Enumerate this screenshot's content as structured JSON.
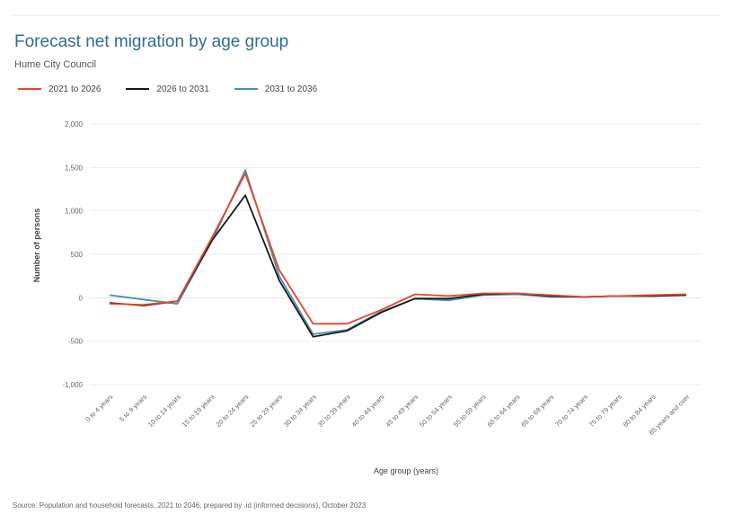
{
  "header": {
    "title": "Forecast net migration by age group",
    "subtitle": "Hume City Council"
  },
  "colors": {
    "series_2021_2026": "#e8462b",
    "series_2026_2031": "#1a1a1a",
    "series_2031_2036": "#4a8fb0",
    "title": "#2e6f8e",
    "grid": "#eeeeee"
  },
  "source": "Source: Population and household forecasts, 2021 to 2046, prepared by .id (informed decisions), October 2023.",
  "chart_data": {
    "type": "line",
    "xlabel": "Age group (years)",
    "ylabel": "Number of persons",
    "ylim": [
      -1000,
      2000
    ],
    "yticks": [
      -1000,
      -500,
      0,
      500,
      1000,
      1500,
      2000
    ],
    "ytick_labels": [
      "-1,000",
      "-500",
      "0",
      "500",
      "1,000",
      "1,500",
      "2,000"
    ],
    "grid": true,
    "legend_position": "top-left",
    "categories": [
      "0 to 4 years",
      "5 to 9 years",
      "10 to 14 years",
      "15 to 19 years",
      "20 to 24 years",
      "25 to 29 years",
      "30 to 34 years",
      "35 to 39 years",
      "40 to 44 years",
      "45 to 49 years",
      "50 to 54 years",
      "55 to 59 years",
      "60 to 64 years",
      "65 to 69 years",
      "70 to 74 years",
      "75 to 79 years",
      "80 to 84 years",
      "85 years and over"
    ],
    "series": [
      {
        "name": "2021 to 2026",
        "values": [
          -70,
          -80,
          -40,
          680,
          1430,
          320,
          -300,
          -300,
          -140,
          40,
          20,
          50,
          50,
          30,
          10,
          20,
          30,
          40
        ]
      },
      {
        "name": "2026 to 2031",
        "values": [
          -60,
          -90,
          -40,
          650,
          1180,
          200,
          -450,
          -380,
          -170,
          -10,
          -10,
          40,
          50,
          20,
          10,
          20,
          20,
          30
        ]
      },
      {
        "name": "2031 to 2036",
        "values": [
          30,
          -20,
          -70,
          640,
          1470,
          250,
          -420,
          -370,
          -160,
          -10,
          -30,
          30,
          40,
          10,
          10,
          20,
          20,
          30
        ]
      }
    ]
  }
}
